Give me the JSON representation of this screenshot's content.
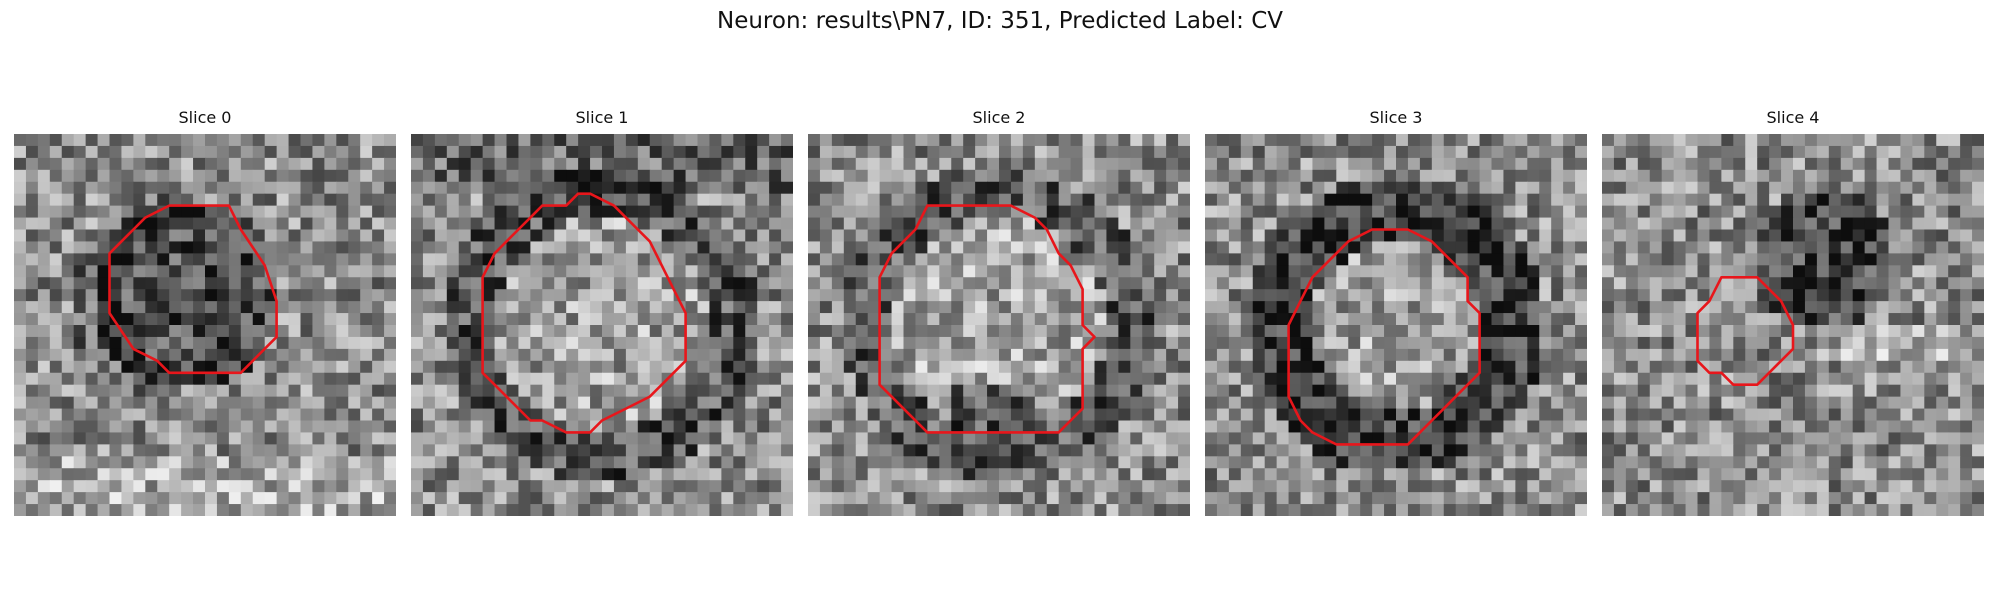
{
  "figure": {
    "title": "Neuron: results\\PN7, ID: 351, Predicted Label: CV",
    "contour_color": "#e8161b",
    "panels": [
      {
        "title": "Slice 0",
        "seed": 11,
        "feature": "dark-ring-left",
        "contour_points": [
          [
            13,
            6
          ],
          [
            18,
            6
          ],
          [
            19,
            8
          ],
          [
            21,
            11
          ],
          [
            22,
            14
          ],
          [
            22,
            17
          ],
          [
            20,
            19
          ],
          [
            19,
            20
          ],
          [
            13,
            20
          ],
          [
            12,
            19
          ],
          [
            10,
            18
          ],
          [
            8,
            15
          ],
          [
            8,
            10
          ],
          [
            10,
            8
          ],
          [
            11,
            7
          ]
        ]
      },
      {
        "title": "Slice 1",
        "seed": 23,
        "feature": "dark-ring",
        "contour_points": [
          [
            11,
            6
          ],
          [
            13,
            6
          ],
          [
            14,
            5
          ],
          [
            15,
            5
          ],
          [
            17,
            6
          ],
          [
            18,
            7
          ],
          [
            20,
            9
          ],
          [
            21,
            11
          ],
          [
            22,
            13
          ],
          [
            23,
            15
          ],
          [
            23,
            19
          ],
          [
            22,
            20
          ],
          [
            20,
            22
          ],
          [
            18,
            23
          ],
          [
            16,
            24
          ],
          [
            15,
            25
          ],
          [
            13,
            25
          ],
          [
            11,
            24
          ],
          [
            10,
            24
          ],
          [
            8,
            22
          ],
          [
            7,
            21
          ],
          [
            6,
            20
          ],
          [
            6,
            14
          ],
          [
            6,
            12
          ],
          [
            7,
            10
          ],
          [
            8,
            9
          ],
          [
            9,
            8
          ],
          [
            10,
            7
          ]
        ]
      },
      {
        "title": "Slice 2",
        "seed": 37,
        "feature": "dark-ring-bottom",
        "contour_points": [
          [
            10,
            6
          ],
          [
            17,
            6
          ],
          [
            19,
            7
          ],
          [
            20,
            8
          ],
          [
            21,
            10
          ],
          [
            22,
            11
          ],
          [
            23,
            13
          ],
          [
            23,
            16
          ],
          [
            24,
            17
          ],
          [
            23,
            18
          ],
          [
            23,
            23
          ],
          [
            22,
            24
          ],
          [
            21,
            25
          ],
          [
            10,
            25
          ],
          [
            8,
            23
          ],
          [
            7,
            22
          ],
          [
            6,
            21
          ],
          [
            6,
            12
          ],
          [
            7,
            10
          ],
          [
            8,
            9
          ],
          [
            9,
            8
          ]
        ]
      },
      {
        "title": "Slice 3",
        "seed": 53,
        "feature": "dark-thick-ring",
        "contour_points": [
          [
            14,
            8
          ],
          [
            17,
            8
          ],
          [
            19,
            9
          ],
          [
            20,
            10
          ],
          [
            21,
            11
          ],
          [
            22,
            12
          ],
          [
            22,
            14
          ],
          [
            23,
            15
          ],
          [
            23,
            20
          ],
          [
            22,
            21
          ],
          [
            21,
            22
          ],
          [
            20,
            23
          ],
          [
            19,
            24
          ],
          [
            18,
            25
          ],
          [
            17,
            26
          ],
          [
            11,
            26
          ],
          [
            9,
            25
          ],
          [
            8,
            24
          ],
          [
            7,
            22
          ],
          [
            7,
            16
          ],
          [
            8,
            14
          ],
          [
            9,
            12
          ],
          [
            10,
            11
          ],
          [
            11,
            10
          ],
          [
            12,
            9
          ]
        ]
      },
      {
        "title": "Slice 4",
        "seed": 71,
        "feature": "dark-blob-top-right",
        "contour_points": [
          [
            10,
            12
          ],
          [
            13,
            12
          ],
          [
            14,
            13
          ],
          [
            15,
            14
          ],
          [
            16,
            16
          ],
          [
            16,
            18
          ],
          [
            15,
            19
          ],
          [
            14,
            20
          ],
          [
            13,
            21
          ],
          [
            11,
            21
          ],
          [
            10,
            20
          ],
          [
            9,
            20
          ],
          [
            8,
            19
          ],
          [
            8,
            15
          ],
          [
            9,
            14
          ]
        ]
      }
    ]
  }
}
